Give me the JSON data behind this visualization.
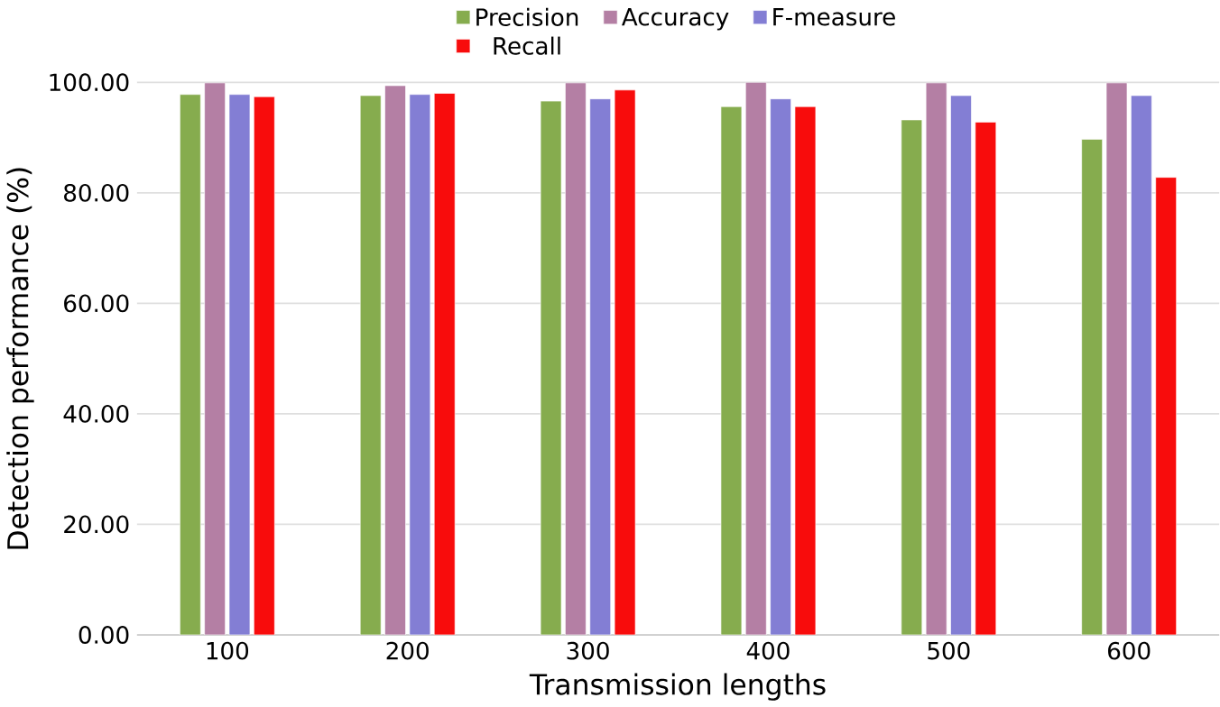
{
  "chart_data": {
    "type": "bar",
    "xlabel": "Transmission lengths",
    "ylabel": "Detection performance (%)",
    "categories": [
      "100",
      "200",
      "300",
      "400",
      "500",
      "600"
    ],
    "series": [
      {
        "name": "Precision",
        "color": "#86ac4e",
        "values": [
          97.8,
          97.6,
          96.6,
          95.6,
          93.2,
          89.7
        ]
      },
      {
        "name": "Accuracy",
        "color": "#b47fa4",
        "values": [
          99.9,
          99.4,
          99.9,
          100,
          99.9,
          99.9
        ]
      },
      {
        "name": "F-measure",
        "color": "#837ed4",
        "values": [
          97.8,
          97.8,
          97.0,
          97.0,
          97.6,
          97.6
        ]
      },
      {
        "name": "Recall",
        "color": "#f80c0c",
        "values": [
          97.4,
          98.0,
          98.6,
          95.6,
          92.8,
          82.8
        ]
      }
    ],
    "ylim": [
      0,
      100
    ],
    "yticks": [
      {
        "value": 0,
        "label": "0.00"
      },
      {
        "value": 20,
        "label": "20.00"
      },
      {
        "value": 40,
        "label": "40.00"
      },
      {
        "value": 60,
        "label": "60.00"
      },
      {
        "value": 80,
        "label": "80.00"
      },
      {
        "value": 100,
        "label": "100.00"
      }
    ],
    "grid": "y",
    "legend": "top"
  }
}
